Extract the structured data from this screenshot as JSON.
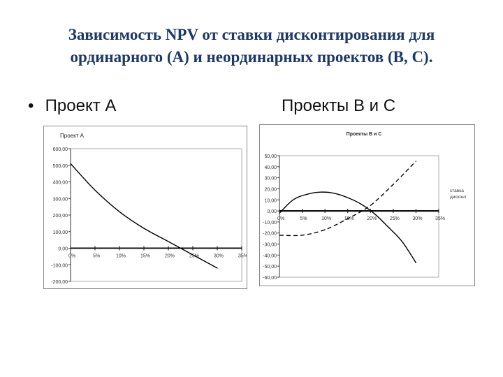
{
  "slide": {
    "title_line1": "Зависимость NPV от ставки дисконтирования для",
    "title_line2": "ординарного (А) и неординарных проектов (В, С).",
    "bullet_label": "Проект А",
    "right_heading": "Проекты В и С"
  },
  "chart_data": [
    {
      "type": "line",
      "title": "Проект А",
      "x_ticks": [
        "0%",
        "5%",
        "10%",
        "15%",
        "20%",
        "25%",
        "30%",
        "35%"
      ],
      "y_ticks": [
        "600,00",
        "500,00",
        "400,00",
        "300,00",
        "200,00",
        "100,00",
        "0,00",
        "-100,00",
        "-200,00"
      ],
      "xlim": [
        0,
        35
      ],
      "ylim": [
        -200,
        600
      ],
      "grid": false,
      "series": [
        {
          "style": "solid",
          "color": "#000000",
          "x": [
            0,
            5,
            10,
            15,
            20,
            25,
            30
          ],
          "y": [
            510,
            350,
            220,
            120,
            40,
            -40,
            -120
          ]
        }
      ]
    },
    {
      "type": "line",
      "title": "Проекты В и С",
      "x_ticks": [
        "0%",
        "5%",
        "10%",
        "15%",
        "20%",
        "25%",
        "30%",
        "35%"
      ],
      "y_ticks": [
        "50,00",
        "40,00",
        "30,00",
        "20,00",
        "10,00",
        "0,00",
        "-10,00",
        "-20,00",
        "-30,00",
        "-40,00",
        "-50,00",
        "-60,00"
      ],
      "xlim": [
        0,
        35
      ],
      "ylim": [
        -60,
        50
      ],
      "grid": false,
      "legend": {
        "text": "ставка дисконт",
        "placement": "right"
      },
      "series": [
        {
          "style": "solid",
          "color": "#000000",
          "x": [
            0,
            3,
            6,
            9,
            12,
            15,
            18,
            21,
            24,
            27,
            30
          ],
          "y": [
            -2,
            10,
            15,
            17,
            16,
            12,
            6,
            -3,
            -15,
            -28,
            -47
          ]
        },
        {
          "style": "dashed",
          "color": "#000000",
          "x": [
            0,
            5,
            10,
            15,
            20,
            25,
            30
          ],
          "y": [
            -22,
            -22,
            -17,
            -7,
            5,
            24,
            45
          ]
        }
      ]
    }
  ]
}
